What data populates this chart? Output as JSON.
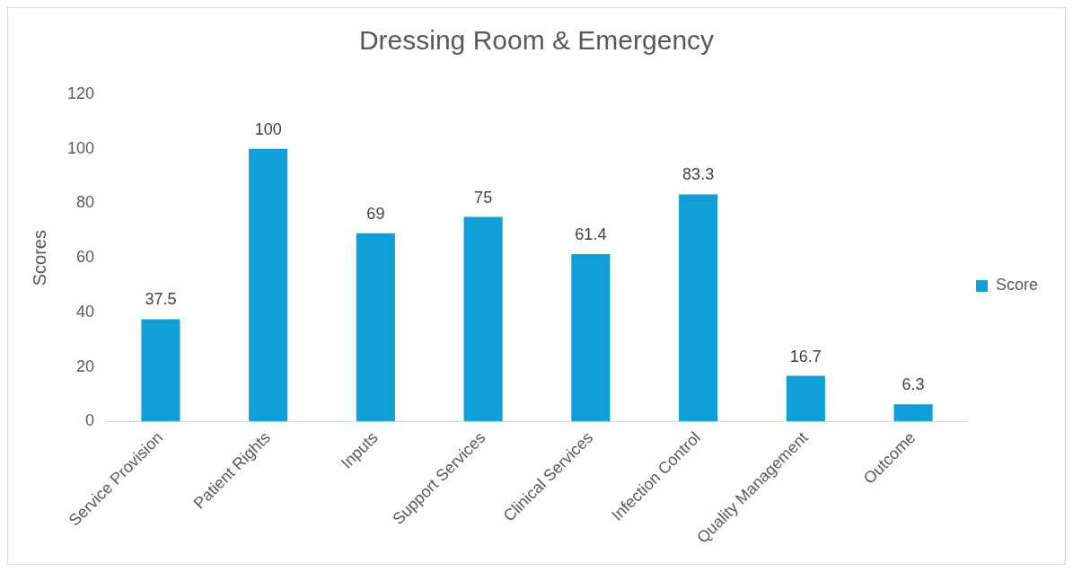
{
  "chart_data": {
    "type": "bar",
    "title": "Dressing Room & Emergency",
    "ylabel": "Scores",
    "categories": [
      "Service Provision",
      "Patient Rights",
      "Inputs",
      "Support Services",
      "Clinical Services",
      "Infection Control",
      "Quality Management",
      "Outcome"
    ],
    "series": [
      {
        "name": "Score",
        "color": "#10a0d8",
        "values": [
          37.5,
          100,
          69,
          75,
          61.4,
          83.3,
          16.7,
          6.3
        ]
      }
    ],
    "ylim": [
      0,
      120
    ],
    "yticks": [
      0,
      20,
      40,
      60,
      80,
      100,
      120
    ],
    "grid": false,
    "legend": "right",
    "data_labels": true
  }
}
